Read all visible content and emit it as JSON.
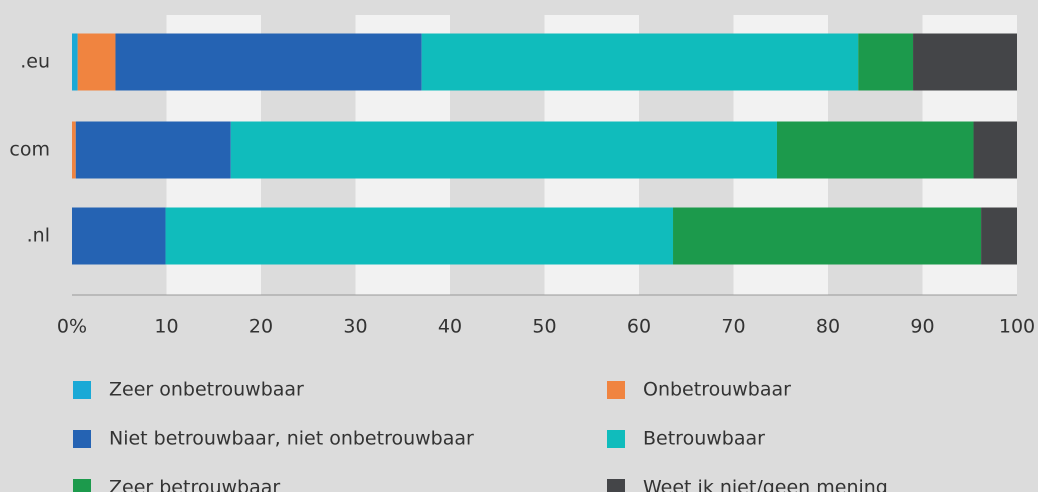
{
  "chart_data": {
    "type": "stacked_bar_horizontal",
    "categories": [
      ".eu",
      "com",
      ".nl"
    ],
    "series": [
      {
        "name": "Zeer onbetrouwbaar",
        "color": "#1aa9d6",
        "values": [
          0.6,
          0,
          0
        ]
      },
      {
        "name": "Onbetrouwbaar",
        "color": "#f08440",
        "values": [
          4.0,
          0.4,
          0
        ]
      },
      {
        "name": "Niet betrouwbaar, niet onbetrouwbaar",
        "color": "#2563b3",
        "values": [
          32.4,
          16.4,
          9.9
        ]
      },
      {
        "name": "Betrouwbaar",
        "color": "#10bcbc",
        "values": [
          46.2,
          57.8,
          53.7
        ]
      },
      {
        "name": "Zeer betrouwbaar",
        "color": "#1c9a4c",
        "values": [
          5.8,
          20.8,
          32.6
        ]
      },
      {
        "name": "Weet ik niet/geen mening",
        "color": "#444548",
        "values": [
          11.0,
          4.6,
          3.8
        ]
      }
    ],
    "xlim": [
      0,
      100
    ],
    "xticks": [
      {
        "value": 0,
        "label": "0%"
      },
      10,
      20,
      30,
      40,
      50,
      60,
      70,
      80,
      90,
      100
    ],
    "legend": "bottom"
  }
}
